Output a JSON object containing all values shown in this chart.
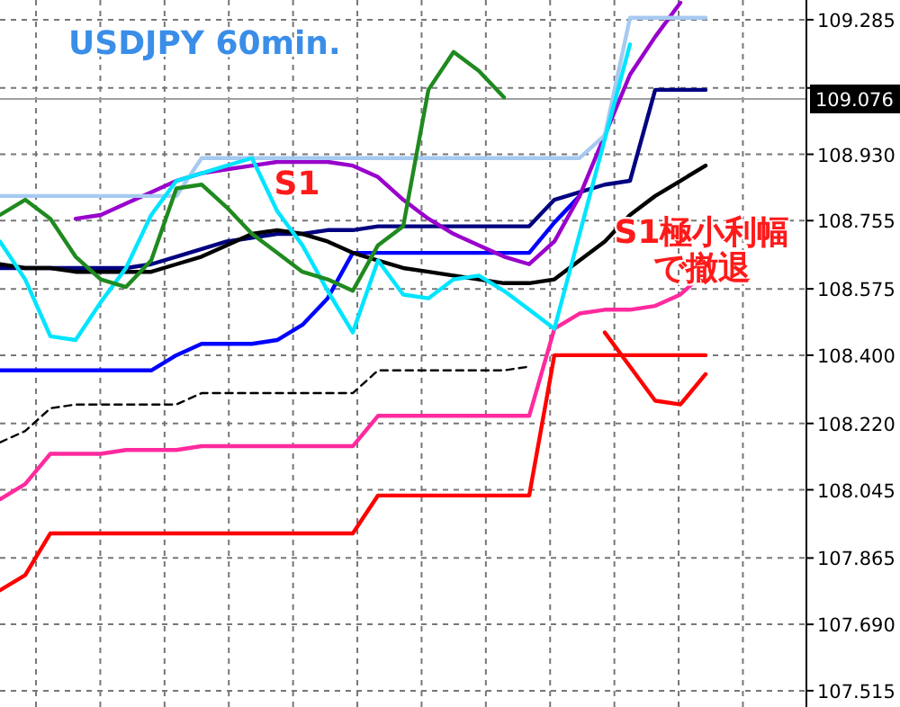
{
  "chart_data": {
    "type": "line",
    "title": "USDJPY 60min.",
    "categories": [
      null,
      null,
      null,
      null,
      null,
      null,
      null,
      null,
      null,
      null,
      null,
      null,
      null,
      null,
      null,
      null,
      null,
      null,
      null,
      null,
      null,
      null,
      null,
      null,
      null,
      null,
      null,
      null,
      null,
      null,
      null,
      null,
      null
    ],
    "ylim": [
      107.472,
      109.337
    ],
    "yticks": [
      109.285,
      {
        "value": 109.105,
        "label": null
      },
      {
        "value": 108.93,
        "label": "108.930"
      },
      108.755,
      108.575,
      {
        "value": 108.4,
        "label": "108.400"
      },
      {
        "value": 108.22,
        "label": "108.220"
      },
      108.045,
      107.865,
      {
        "value": 107.69,
        "label": "107.690"
      },
      107.515
    ],
    "tick_labels": "y",
    "grid": true,
    "marker": "none",
    "ref_lines": [
      {
        "axis": "y",
        "value": 109.076,
        "label": "109.076",
        "color": "#a0a0a0"
      }
    ],
    "annotations": [
      "S1",
      "S1極小利幅で撤退"
    ],
    "series": [
      {
        "color": "#ff0000",
        "values": [
          107.78,
          107.82,
          107.93,
          107.93,
          107.93,
          107.93,
          107.93,
          107.93,
          107.93,
          107.93,
          107.93,
          107.93,
          107.93,
          107.93,
          107.93,
          108.03,
          108.03,
          108.03,
          108.03,
          108.03,
          108.03,
          108.03,
          108.4,
          108.4,
          108.4,
          108.4,
          108.4,
          108.4,
          108.4,
          null,
          null,
          null,
          null
        ]
      },
      {
        "color": "#ff2a9d",
        "values": [
          108.02,
          108.06,
          108.14,
          108.14,
          108.14,
          108.15,
          108.15,
          108.15,
          108.16,
          108.16,
          108.16,
          108.16,
          108.16,
          108.16,
          108.16,
          108.24,
          108.24,
          108.24,
          108.24,
          108.24,
          108.24,
          108.24,
          108.47,
          108.51,
          108.52,
          108.52,
          108.53,
          108.56,
          108.62,
          null,
          null,
          null,
          null
        ]
      },
      {
        "color": "#000000",
        "line_style": "dashed",
        "values": [
          108.17,
          108.2,
          108.26,
          108.27,
          108.27,
          108.27,
          108.27,
          108.27,
          108.3,
          108.3,
          108.3,
          108.3,
          108.3,
          108.3,
          108.3,
          108.36,
          108.36,
          108.36,
          108.36,
          108.36,
          108.36,
          108.37,
          null,
          null,
          null,
          null,
          null,
          null,
          null,
          null,
          null,
          null,
          null
        ]
      },
      {
        "color": "#0000ff",
        "values": [
          108.36,
          108.36,
          108.36,
          108.36,
          108.36,
          108.36,
          108.36,
          108.4,
          108.43,
          108.43,
          108.43,
          108.44,
          108.48,
          108.55,
          108.67,
          108.67,
          108.67,
          108.67,
          108.67,
          108.67,
          108.67,
          108.67,
          108.75,
          108.82,
          null,
          null,
          null,
          null,
          null,
          null,
          null,
          null,
          null
        ]
      },
      {
        "color": "#000080",
        "values": [
          108.63,
          108.63,
          108.63,
          108.63,
          108.63,
          108.63,
          108.64,
          108.66,
          108.68,
          108.7,
          108.71,
          108.72,
          108.72,
          108.73,
          108.73,
          108.74,
          108.74,
          108.74,
          108.74,
          108.74,
          108.74,
          108.74,
          108.81,
          108.83,
          108.85,
          108.86,
          109.1,
          109.1,
          109.1,
          null,
          null,
          null,
          null
        ]
      },
      {
        "color": "#9900cc",
        "values": [
          null,
          null,
          null,
          108.76,
          108.77,
          108.8,
          108.83,
          108.86,
          108.88,
          108.89,
          108.9,
          108.91,
          108.91,
          108.91,
          108.9,
          108.87,
          108.81,
          108.76,
          108.72,
          108.69,
          108.66,
          108.64,
          108.7,
          108.82,
          108.98,
          109.14,
          109.24,
          109.33,
          null,
          null,
          null,
          null,
          null
        ]
      },
      {
        "color": "#a6caf0",
        "values": [
          108.82,
          108.82,
          108.82,
          108.82,
          108.82,
          108.82,
          108.82,
          108.82,
          108.92,
          108.92,
          108.92,
          108.92,
          108.92,
          108.92,
          108.92,
          108.92,
          108.92,
          108.92,
          108.92,
          108.92,
          108.92,
          108.92,
          108.92,
          108.92,
          108.98,
          109.29,
          109.29,
          109.29,
          109.29,
          null,
          null,
          null,
          null
        ]
      },
      {
        "color": "#000000",
        "values": [
          108.64,
          108.63,
          108.63,
          108.62,
          108.62,
          108.62,
          108.62,
          108.64,
          108.66,
          108.69,
          108.72,
          108.73,
          108.72,
          108.7,
          108.67,
          108.65,
          108.63,
          108.62,
          108.61,
          108.6,
          108.59,
          108.59,
          108.6,
          108.65,
          108.7,
          108.77,
          108.82,
          108.86,
          108.9,
          null,
          null,
          null,
          null
        ]
      },
      {
        "color": "#00e5ff",
        "values": [
          108.7,
          108.6,
          108.45,
          108.44,
          108.54,
          108.63,
          108.77,
          108.86,
          108.88,
          108.9,
          108.92,
          108.78,
          108.69,
          108.57,
          108.46,
          108.65,
          108.56,
          108.55,
          108.6,
          108.61,
          108.57,
          108.52,
          108.47,
          108.72,
          108.97,
          109.22,
          null,
          null,
          null,
          null,
          null,
          null,
          null
        ]
      },
      {
        "color": "#1f8a1f",
        "values": [
          108.77,
          108.81,
          108.76,
          108.66,
          108.6,
          108.58,
          108.65,
          108.84,
          108.85,
          108.79,
          108.72,
          108.67,
          108.62,
          108.6,
          108.57,
          108.69,
          108.74,
          109.1,
          109.2,
          109.15,
          109.08,
          null,
          null,
          null,
          null,
          null,
          null,
          null,
          null,
          null,
          null,
          null,
          null
        ]
      },
      {
        "color": "#ff0000",
        "values": [
          null,
          null,
          null,
          null,
          null,
          null,
          null,
          null,
          null,
          null,
          null,
          null,
          null,
          null,
          null,
          null,
          null,
          null,
          null,
          null,
          null,
          null,
          null,
          null,
          108.46,
          108.37,
          108.28,
          108.27,
          108.35,
          null,
          null,
          null,
          null
        ]
      }
    ]
  }
}
